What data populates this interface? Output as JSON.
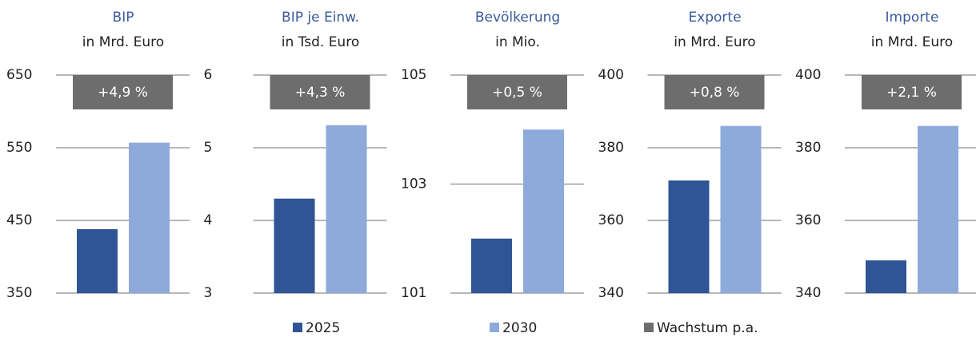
{
  "chart_data": [
    {
      "type": "bar",
      "title": "BIP",
      "subtitle": "in Mrd. Euro",
      "ylim": [
        350,
        650
      ],
      "yticks": [
        350,
        450,
        550,
        650
      ],
      "growth": "+4,9 %",
      "series": [
        {
          "name": "2025",
          "color": "#2f5597",
          "values": [
            438
          ]
        },
        {
          "name": "2030",
          "color": "#8eaadb",
          "values": [
            557
          ]
        }
      ]
    },
    {
      "type": "bar",
      "title": "BIP je Einw.",
      "subtitle": "in Tsd. Euro",
      "ylim": [
        3,
        6
      ],
      "yticks": [
        3,
        4,
        5,
        6
      ],
      "growth": "+4,3 %",
      "series": [
        {
          "name": "2025",
          "color": "#2f5597",
          "values": [
            4.3
          ]
        },
        {
          "name": "2030",
          "color": "#8eaadb",
          "values": [
            5.31
          ]
        }
      ]
    },
    {
      "type": "bar",
      "title": "Bevölkerung",
      "subtitle": "in Mio.",
      "ylim": [
        101,
        105
      ],
      "yticks": [
        101,
        103,
        105
      ],
      "growth": "+0,5 %",
      "series": [
        {
          "name": "2025",
          "color": "#2f5597",
          "values": [
            102.0
          ]
        },
        {
          "name": "2030",
          "color": "#8eaadb",
          "values": [
            104.0
          ]
        }
      ]
    },
    {
      "type": "bar",
      "title": "Exporte",
      "subtitle": "in Mrd. Euro",
      "ylim": [
        340,
        400
      ],
      "yticks": [
        340,
        360,
        380,
        400
      ],
      "growth": "+0,8 %",
      "series": [
        {
          "name": "2025",
          "color": "#2f5597",
          "values": [
            371
          ]
        },
        {
          "name": "2030",
          "color": "#8eaadb",
          "values": [
            386
          ]
        }
      ]
    },
    {
      "type": "bar",
      "title": "Importe",
      "subtitle": "in Mrd. Euro",
      "ylim": [
        340,
        400
      ],
      "yticks": [
        340,
        360,
        380,
        400
      ],
      "growth": "+2,1 %",
      "series": [
        {
          "name": "2025",
          "color": "#2f5597",
          "values": [
            349
          ]
        },
        {
          "name": "2030",
          "color": "#8eaadb",
          "values": [
            386
          ]
        }
      ]
    }
  ],
  "legend": {
    "growth_name": "Wachstum p.a.",
    "growth_color": "#6d6d6d"
  }
}
